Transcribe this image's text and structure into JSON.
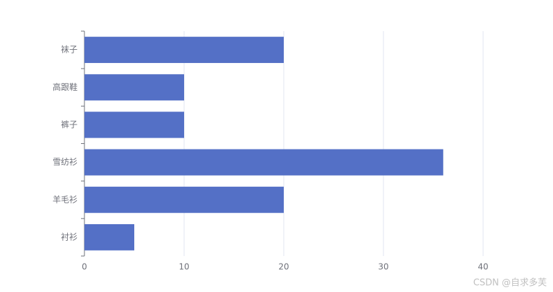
{
  "chart_data": {
    "type": "bar",
    "orientation": "horizontal",
    "categories": [
      "衬衫",
      "羊毛衫",
      "雪纺衫",
      "裤子",
      "高跟鞋",
      "袜子"
    ],
    "values": [
      5,
      20,
      36,
      10,
      10,
      20
    ],
    "color": "#5470c6",
    "xlim": [
      0,
      40
    ],
    "xticks": [
      0,
      10,
      20,
      30,
      40
    ],
    "grid": true
  },
  "watermark": "CSDN @自求多芙"
}
